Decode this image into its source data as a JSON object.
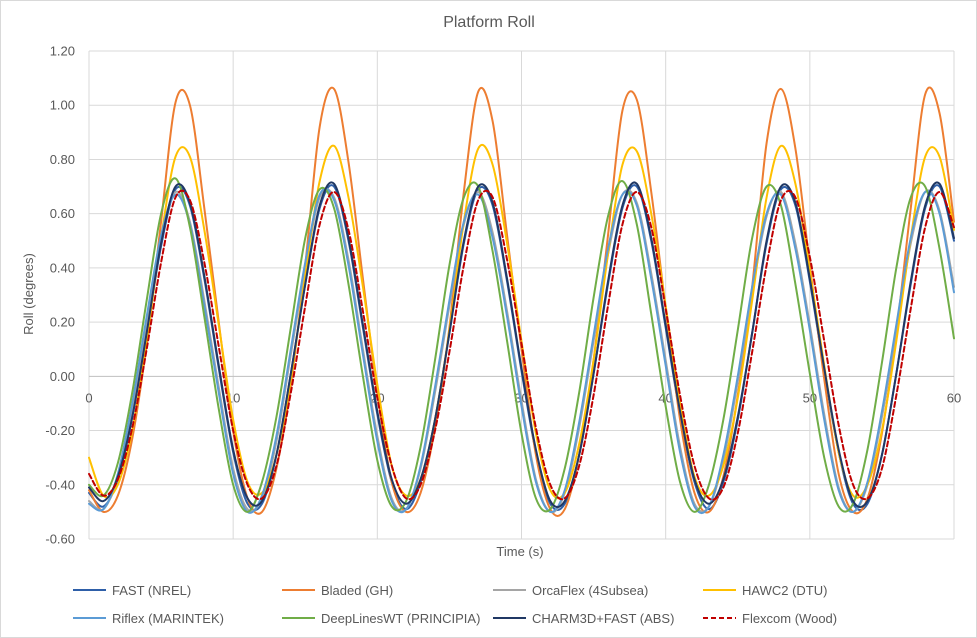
{
  "chart_data": {
    "type": "line",
    "title": "Platform Roll",
    "xlabel": "Time (s)",
    "ylabel": "Roll (degrees)",
    "xlim": [
      0,
      60
    ],
    "ylim": [
      -0.6,
      1.2
    ],
    "x_ticks": [
      "0",
      "10",
      "20",
      "30",
      "40",
      "50",
      "60"
    ],
    "y_ticks": [
      "1.20",
      "1.00",
      "0.80",
      "0.60",
      "0.40",
      "0.20",
      "0.00",
      "-0.20",
      "-0.40",
      "-0.60"
    ],
    "grid": true,
    "legend_position": "bottom",
    "x": [
      0,
      1,
      2,
      3,
      4,
      5,
      6,
      7,
      8,
      9,
      10,
      11,
      12,
      13,
      14,
      15,
      16,
      17,
      18,
      19,
      20,
      21,
      22,
      23,
      24,
      25,
      26,
      27,
      28,
      29,
      30,
      31,
      32,
      33,
      34,
      35,
      36,
      37,
      38,
      39,
      40,
      41,
      42,
      43,
      44,
      45,
      46,
      47,
      48,
      49,
      50,
      51,
      52,
      53,
      54,
      55,
      56,
      57,
      58,
      59,
      60
    ],
    "series": [
      {
        "name": "FAST (NREL)",
        "color": "#2e5fa8",
        "dash": "",
        "values": [
          -0.43,
          -0.48,
          -0.38,
          -0.15,
          0.16,
          0.48,
          0.69,
          0.63,
          0.36,
          0.03,
          -0.28,
          -0.47,
          -0.47,
          -0.29,
          0.01,
          0.34,
          0.62,
          0.7,
          0.5,
          0.18,
          -0.14,
          -0.39,
          -0.49,
          -0.39,
          -0.16,
          0.16,
          0.49,
          0.69,
          0.63,
          0.35,
          0.02,
          -0.28,
          -0.47,
          -0.47,
          -0.29,
          0.01,
          0.34,
          0.62,
          0.7,
          0.5,
          0.18,
          -0.14,
          -0.39,
          -0.49,
          -0.39,
          -0.16,
          0.16,
          0.49,
          0.69,
          0.63,
          0.35,
          0.02,
          -0.28,
          -0.47,
          -0.47,
          -0.29,
          0.01,
          0.34,
          0.62,
          0.7,
          0.5
        ]
      },
      {
        "name": "Bladed (GH)",
        "color": "#ed7d31",
        "dash": "",
        "values": [
          -0.42,
          -0.5,
          -0.44,
          -0.23,
          0.12,
          0.57,
          1.01,
          1.0,
          0.62,
          0.2,
          -0.2,
          -0.45,
          -0.5,
          -0.34,
          -0.03,
          0.41,
          0.92,
          1.06,
          0.79,
          0.36,
          -0.06,
          -0.39,
          -0.5,
          -0.43,
          -0.19,
          0.18,
          0.68,
          1.05,
          0.94,
          0.52,
          0.1,
          -0.29,
          -0.49,
          -0.49,
          -0.29,
          0.06,
          0.52,
          0.98,
          1.02,
          0.68,
          0.25,
          -0.16,
          -0.43,
          -0.5,
          -0.37,
          -0.07,
          0.33,
          0.86,
          1.06,
          0.84,
          0.41,
          -0.01,
          -0.36,
          -0.5,
          -0.45,
          -0.21,
          0.16,
          0.62,
          1.04,
          0.97,
          0.57
        ]
      },
      {
        "name": "OrcaFlex (4Subsea)",
        "color": "#a5a5a5",
        "dash": "",
        "values": [
          -0.46,
          -0.49,
          -0.37,
          -0.12,
          0.2,
          0.51,
          0.68,
          0.57,
          0.28,
          -0.04,
          -0.34,
          -0.49,
          -0.45,
          -0.24,
          0.08,
          0.4,
          0.66,
          0.66,
          0.43,
          0.1,
          -0.22,
          -0.45,
          -0.49,
          -0.34,
          -0.06,
          0.26,
          0.56,
          0.68,
          0.53,
          0.24,
          -0.09,
          -0.38,
          -0.5,
          -0.43,
          -0.19,
          0.13,
          0.45,
          0.67,
          0.64,
          0.38,
          0.06,
          -0.26,
          -0.47,
          -0.48,
          -0.31,
          -0.02,
          0.31,
          0.59,
          0.68,
          0.49,
          0.19,
          -0.14,
          -0.41,
          -0.5,
          -0.4,
          -0.15,
          0.17,
          0.49,
          0.68,
          0.61,
          0.33
        ]
      },
      {
        "name": "HAWC2 (DTU)",
        "color": "#ffc000",
        "dash": "",
        "values": [
          -0.3,
          -0.44,
          -0.4,
          -0.2,
          0.13,
          0.51,
          0.81,
          0.81,
          0.54,
          0.19,
          -0.16,
          -0.39,
          -0.43,
          -0.29,
          -0.01,
          0.37,
          0.72,
          0.85,
          0.66,
          0.33,
          -0.03,
          -0.33,
          -0.44,
          -0.38,
          -0.16,
          0.17,
          0.57,
          0.84,
          0.78,
          0.49,
          0.13,
          -0.21,
          -0.42,
          -0.43,
          -0.25,
          0.06,
          0.45,
          0.78,
          0.83,
          0.6,
          0.26,
          -0.1,
          -0.37,
          -0.44,
          -0.33,
          -0.08,
          0.28,
          0.66,
          0.85,
          0.71,
          0.39,
          0.04,
          -0.28,
          -0.44,
          -0.4,
          -0.2,
          0.13,
          0.51,
          0.81,
          0.81,
          0.54
        ]
      },
      {
        "name": "Riflex (MARINTEK)",
        "color": "#5b9bd5",
        "dash": "",
        "values": [
          -0.47,
          -0.49,
          -0.36,
          -0.1,
          0.22,
          0.52,
          0.67,
          0.56,
          0.26,
          -0.06,
          -0.36,
          -0.5,
          -0.44,
          -0.22,
          0.1,
          0.42,
          0.67,
          0.65,
          0.41,
          0.08,
          -0.24,
          -0.46,
          -0.49,
          -0.33,
          -0.04,
          0.28,
          0.57,
          0.67,
          0.51,
          0.22,
          -0.11,
          -0.39,
          -0.5,
          -0.42,
          -0.17,
          0.15,
          0.47,
          0.67,
          0.63,
          0.36,
          0.04,
          -0.28,
          -0.48,
          -0.48,
          -0.29,
          0.0,
          0.33,
          0.6,
          0.67,
          0.47,
          0.17,
          -0.16,
          -0.42,
          -0.5,
          -0.39,
          -0.13,
          0.19,
          0.51,
          0.68,
          0.6,
          0.31
        ]
      },
      {
        "name": "DeepLinesWT (PRINCIPIA)",
        "color": "#70ad47",
        "dash": "",
        "values": [
          -0.4,
          -0.44,
          -0.32,
          -0.06,
          0.28,
          0.6,
          0.73,
          0.55,
          0.22,
          -0.12,
          -0.4,
          -0.5,
          -0.39,
          -0.15,
          0.18,
          0.51,
          0.69,
          0.62,
          0.34,
          0.0,
          -0.31,
          -0.48,
          -0.46,
          -0.26,
          0.06,
          0.41,
          0.66,
          0.7,
          0.46,
          0.13,
          -0.21,
          -0.45,
          -0.49,
          -0.34,
          -0.06,
          0.29,
          0.59,
          0.72,
          0.56,
          0.23,
          -0.11,
          -0.39,
          -0.5,
          -0.4,
          -0.16,
          0.17,
          0.51,
          0.7,
          0.63,
          0.34,
          0.01,
          -0.3,
          -0.48,
          -0.47,
          -0.27,
          0.05,
          0.4,
          0.66,
          0.7,
          0.47,
          0.14
        ]
      },
      {
        "name": "CHARM3D+FAST (ABS)",
        "color": "#203864",
        "dash": "",
        "values": [
          -0.41,
          -0.46,
          -0.37,
          -0.15,
          0.16,
          0.49,
          0.7,
          0.64,
          0.37,
          0.04,
          -0.27,
          -0.45,
          -0.46,
          -0.29,
          0.01,
          0.34,
          0.63,
          0.71,
          0.51,
          0.19,
          -0.13,
          -0.38,
          -0.47,
          -0.38,
          -0.16,
          0.16,
          0.5,
          0.7,
          0.64,
          0.36,
          0.03,
          -0.27,
          -0.46,
          -0.46,
          -0.29,
          0.01,
          0.35,
          0.63,
          0.71,
          0.51,
          0.19,
          -0.13,
          -0.38,
          -0.47,
          -0.38,
          -0.15,
          0.16,
          0.5,
          0.7,
          0.64,
          0.36,
          0.03,
          -0.27,
          -0.46,
          -0.46,
          -0.29,
          0.01,
          0.35,
          0.63,
          0.71,
          0.51
        ]
      },
      {
        "name": "Flexcom (Wood)",
        "color": "#c00000",
        "dash": "5,3",
        "values": [
          -0.36,
          -0.44,
          -0.38,
          -0.19,
          0.1,
          0.42,
          0.66,
          0.65,
          0.42,
          0.11,
          -0.2,
          -0.4,
          -0.45,
          -0.33,
          -0.06,
          0.26,
          0.56,
          0.68,
          0.54,
          0.24,
          -0.08,
          -0.33,
          -0.45,
          -0.4,
          -0.2,
          0.09,
          0.41,
          0.65,
          0.66,
          0.43,
          0.12,
          -0.19,
          -0.4,
          -0.45,
          -0.33,
          -0.07,
          0.26,
          0.56,
          0.68,
          0.55,
          0.25,
          -0.07,
          -0.33,
          -0.45,
          -0.41,
          -0.21,
          0.09,
          0.41,
          0.65,
          0.66,
          0.44,
          0.13,
          -0.18,
          -0.4,
          -0.45,
          -0.34,
          -0.07,
          0.25,
          0.55,
          0.68,
          0.55
        ]
      }
    ]
  }
}
